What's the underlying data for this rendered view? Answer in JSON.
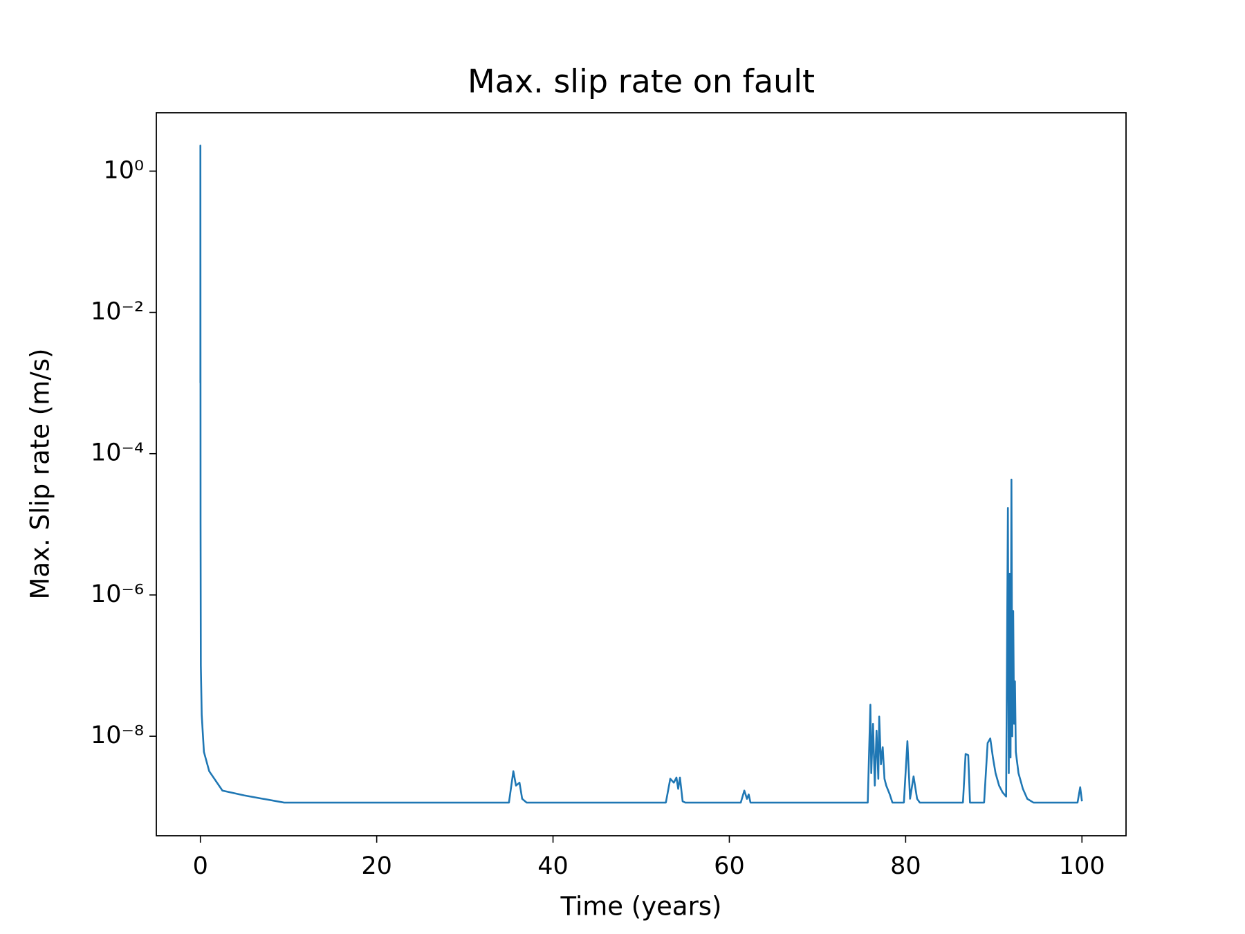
{
  "chart_data": {
    "type": "line",
    "title": "Max. slip rate on fault",
    "xlabel": "Time (years)",
    "ylabel": "Max. Slip rate (m/s)",
    "color": "#1f77b4",
    "yscale": "log",
    "xlim": [
      -5,
      105
    ],
    "ylim": [
      3.9e-10,
      6.7
    ],
    "xticks": [
      0,
      20,
      40,
      60,
      80,
      100
    ],
    "yticks": [
      {
        "value": 1,
        "label": "10⁰"
      },
      {
        "value": 0.01,
        "label": "10⁻²"
      },
      {
        "value": 0.0001,
        "label": "10⁻⁴"
      },
      {
        "value": 1e-06,
        "label": "10⁻⁶"
      },
      {
        "value": 1e-08,
        "label": "10⁻⁸"
      }
    ],
    "x": [
      0,
      0,
      0.02,
      0.05,
      0.15,
      0.4,
      1,
      2.5,
      5,
      9.5,
      35,
      35.5,
      35.8,
      36.2,
      36.5,
      37,
      52.8,
      53.3,
      53.7,
      54.0,
      54.2,
      54.4,
      54.7,
      55,
      61.3,
      61.7,
      62,
      62.2,
      62.4,
      75.7,
      76,
      76.1,
      76.3,
      76.5,
      76.7,
      76.9,
      77,
      77.2,
      77.4,
      77.6,
      77.8,
      78.2,
      78.5,
      79.8,
      80.2,
      80.5,
      80.9,
      81.3,
      81.6,
      86.5,
      86.8,
      87.1,
      87.3,
      88.9,
      89.3,
      89.6,
      89.9,
      90.2,
      90.6,
      91,
      91.4,
      91.6,
      91.7,
      91.8,
      91.9,
      92,
      92.1,
      92.2,
      92.3,
      92.4,
      92.5,
      92.8,
      93.3,
      93.8,
      94.5,
      99.5,
      99.8,
      100
    ],
    "values": [
      0.001,
      2.3,
      1e-05,
      1e-07,
      2e-08,
      6e-09,
      3.2e-09,
      1.7e-09,
      1.45e-09,
      1.15e-09,
      1.15e-09,
      3.2e-09,
      2e-09,
      2.2e-09,
      1.3e-09,
      1.15e-09,
      1.15e-09,
      2.5e-09,
      2.2e-09,
      2.6e-09,
      1.8e-09,
      2.6e-09,
      1.2e-09,
      1.15e-09,
      1.15e-09,
      1.7e-09,
      1.3e-09,
      1.5e-09,
      1.15e-09,
      1.15e-09,
      2.8e-08,
      3e-09,
      1.5e-08,
      2e-09,
      1.2e-08,
      2.5e-09,
      1.9e-08,
      4e-09,
      7e-09,
      2.5e-09,
      2e-09,
      1.5e-09,
      1.15e-09,
      1.15e-09,
      8.5e-09,
      1.3e-09,
      2.7e-09,
      1.3e-09,
      1.15e-09,
      1.15e-09,
      5.6e-09,
      5.4e-09,
      1.15e-09,
      1.15e-09,
      8e-09,
      9.3e-09,
      5e-09,
      3e-09,
      2e-09,
      1.6e-09,
      1.4e-09,
      1.7e-05,
      3e-09,
      2e-06,
      5e-09,
      4.3e-05,
      1e-08,
      5.9e-07,
      1.5e-08,
      6e-08,
      6e-09,
      3e-09,
      1.8e-09,
      1.3e-09,
      1.15e-09,
      1.15e-09,
      1.9e-09,
      1.2e-09
    ]
  }
}
